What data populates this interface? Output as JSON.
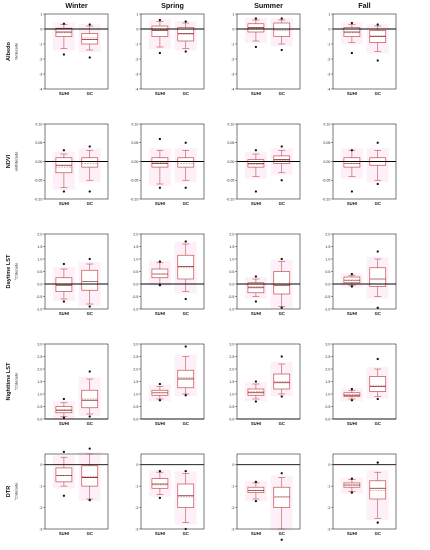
{
  "colors": {
    "box": "#c0504d",
    "median": "#8b1a1a",
    "mean": "#c98a8a",
    "frame": "#222222",
    "zero": "#000000",
    "halo": "#fbe3f4"
  },
  "seasons": [
    "Winter",
    "Spring",
    "Summer",
    "Fall"
  ],
  "chart_data": [
    {
      "type": "box",
      "variable": "Albedo",
      "unit": "%/decade",
      "ylim": [
        -4,
        1
      ],
      "yticks": [
        "1",
        "0",
        "-1",
        "-2",
        "-3",
        "-4"
      ],
      "ytick_values": [
        1,
        0,
        -1,
        -2,
        -3,
        -4
      ],
      "categories": [
        "SUHI",
        "GC"
      ],
      "panels": [
        {
          "season": "Winter",
          "boxes": [
            {
              "category": "SUHI",
              "whisker_low": -1.3,
              "q1": -0.5,
              "median": -0.2,
              "mean": -0.25,
              "q3": 0.05,
              "whisker_high": 0.3,
              "outliers": [
                0.35,
                -1.7
              ]
            },
            {
              "category": "GC",
              "whisker_low": -1.4,
              "q1": -1.0,
              "median": -0.7,
              "mean": -0.6,
              "q3": -0.3,
              "whisker_high": 0.2,
              "outliers": [
                0.3,
                -1.9
              ]
            }
          ]
        },
        {
          "season": "Spring",
          "boxes": [
            {
              "category": "SUHI",
              "whisker_low": -1.2,
              "q1": -0.5,
              "median": -0.1,
              "mean": -0.05,
              "q3": 0.2,
              "whisker_high": 0.5,
              "outliers": [
                0.6,
                -1.6
              ]
            },
            {
              "category": "GC",
              "whisker_low": -1.3,
              "q1": -0.8,
              "median": -0.3,
              "mean": -0.35,
              "q3": 0.1,
              "whisker_high": 0.4,
              "outliers": [
                0.5,
                -1.5
              ]
            }
          ]
        },
        {
          "season": "Summer",
          "boxes": [
            {
              "category": "SUHI",
              "whisker_low": -0.8,
              "q1": -0.2,
              "median": 0.1,
              "mean": 0.05,
              "q3": 0.35,
              "whisker_high": 0.6,
              "outliers": [
                0.7,
                -1.2
              ]
            },
            {
              "category": "GC",
              "whisker_low": -1.0,
              "q1": -0.5,
              "median": 0.0,
              "mean": -0.1,
              "q3": 0.4,
              "whisker_high": 0.6,
              "outliers": [
                0.7,
                -1.4
              ]
            }
          ]
        },
        {
          "season": "Fall",
          "boxes": [
            {
              "category": "SUHI",
              "whisker_low": -0.9,
              "q1": -0.5,
              "median": -0.2,
              "mean": -0.25,
              "q3": 0.1,
              "whisker_high": 0.3,
              "outliers": [
                0.4,
                -1.6
              ]
            },
            {
              "category": "GC",
              "whisker_low": -1.5,
              "q1": -0.9,
              "median": -0.5,
              "mean": -0.45,
              "q3": -0.1,
              "whisker_high": 0.2,
              "outliers": [
                0.3,
                -2.1
              ]
            }
          ]
        }
      ]
    },
    {
      "type": "box",
      "variable": "NDVI",
      "unit": "unit/decade",
      "ylim": [
        -0.1,
        0.1
      ],
      "yticks": [
        "0.10",
        "0.05",
        "0.00",
        "-0.05",
        "-0.10"
      ],
      "ytick_values": [
        0.1,
        0.05,
        0,
        -0.05,
        -0.1
      ],
      "categories": [
        "SUHI",
        "GC"
      ],
      "panels": [
        {
          "season": "Winter",
          "boxes": [
            {
              "category": "SUHI",
              "whisker_low": -0.07,
              "q1": -0.03,
              "median": -0.01,
              "mean": -0.015,
              "q3": 0.01,
              "whisker_high": 0.02,
              "outliers": [
                0.03,
                -0.08
              ]
            },
            {
              "category": "GC",
              "whisker_low": -0.05,
              "q1": -0.015,
              "median": 0.0,
              "mean": -0.005,
              "q3": 0.01,
              "whisker_high": 0.03,
              "outliers": [
                0.04,
                -0.08
              ]
            }
          ]
        },
        {
          "season": "Spring",
          "boxes": [
            {
              "category": "SUHI",
              "whisker_low": -0.06,
              "q1": -0.015,
              "median": -0.005,
              "mean": -0.003,
              "q3": 0.01,
              "whisker_high": 0.03,
              "outliers": [
                0.06,
                -0.07
              ]
            },
            {
              "category": "GC",
              "whisker_low": -0.05,
              "q1": -0.015,
              "median": 0.0,
              "mean": -0.005,
              "q3": 0.01,
              "whisker_high": 0.03,
              "outliers": [
                0.05,
                -0.07
              ]
            }
          ]
        },
        {
          "season": "Summer",
          "boxes": [
            {
              "category": "SUHI",
              "whisker_low": -0.04,
              "q1": -0.015,
              "median": -0.005,
              "mean": -0.008,
              "q3": 0.005,
              "whisker_high": 0.02,
              "outliers": [
                0.03,
                -0.08
              ]
            },
            {
              "category": "GC",
              "whisker_low": -0.03,
              "q1": -0.005,
              "median": 0.005,
              "mean": 0.003,
              "q3": 0.015,
              "whisker_high": 0.03,
              "outliers": [
                0.04,
                -0.05
              ]
            }
          ]
        },
        {
          "season": "Fall",
          "boxes": [
            {
              "category": "SUHI",
              "whisker_low": -0.04,
              "q1": -0.015,
              "median": -0.005,
              "mean": -0.005,
              "q3": 0.01,
              "whisker_high": 0.03,
              "outliers": [
                0.03,
                -0.08
              ]
            },
            {
              "category": "GC",
              "whisker_low": -0.05,
              "q1": -0.01,
              "median": 0.0,
              "mean": 0.0,
              "q3": 0.01,
              "whisker_high": 0.03,
              "outliers": [
                0.05,
                -0.06
              ]
            }
          ]
        }
      ]
    },
    {
      "type": "box",
      "variable": "Daytime LST",
      "unit": "°C/decade",
      "ylim": [
        -1,
        2
      ],
      "yticks": [
        "2.0",
        "1.5",
        "1.0",
        "0.5",
        "0.0",
        "-0.5",
        "-1.0"
      ],
      "ytick_values": [
        2,
        1.5,
        1,
        0.5,
        0,
        -0.5,
        -1
      ],
      "categories": [
        "SUHI",
        "GC"
      ],
      "panels": [
        {
          "season": "Winter",
          "boxes": [
            {
              "category": "SUHI",
              "whisker_low": -0.6,
              "q1": -0.3,
              "median": -0.05,
              "mean": -0.02,
              "q3": 0.25,
              "whisker_high": 0.6,
              "outliers": [
                0.8,
                -0.7
              ]
            },
            {
              "category": "GC",
              "whisker_low": -0.8,
              "q1": -0.25,
              "median": 0.1,
              "mean": 0.1,
              "q3": 0.55,
              "whisker_high": 0.8,
              "outliers": [
                1.0,
                -0.9
              ]
            }
          ]
        },
        {
          "season": "Spring",
          "boxes": [
            {
              "category": "SUHI",
              "whisker_low": 0.0,
              "q1": 0.25,
              "median": 0.4,
              "mean": 0.4,
              "q3": 0.6,
              "whisker_high": 0.85,
              "outliers": [
                0.9,
                -0.05
              ]
            },
            {
              "category": "GC",
              "whisker_low": -0.3,
              "q1": 0.2,
              "median": 0.7,
              "mean": 0.65,
              "q3": 1.15,
              "whisker_high": 1.6,
              "outliers": [
                1.7,
                -0.6
              ]
            }
          ]
        },
        {
          "season": "Summer",
          "boxes": [
            {
              "category": "SUHI",
              "whisker_low": -0.5,
              "q1": -0.35,
              "median": -0.15,
              "mean": -0.1,
              "q3": 0.05,
              "whisker_high": 0.2,
              "outliers": [
                0.3,
                -0.7
              ]
            },
            {
              "category": "GC",
              "whisker_low": -0.9,
              "q1": -0.4,
              "median": -0.05,
              "mean": 0.0,
              "q3": 0.5,
              "whisker_high": 0.9,
              "outliers": [
                1.0,
                -0.95
              ]
            }
          ]
        },
        {
          "season": "Fall",
          "boxes": [
            {
              "category": "SUHI",
              "whisker_low": -0.05,
              "q1": 0.05,
              "median": 0.15,
              "mean": 0.15,
              "q3": 0.28,
              "whisker_high": 0.35,
              "outliers": [
                0.4,
                -0.1
              ]
            },
            {
              "category": "GC",
              "whisker_low": -0.5,
              "q1": -0.1,
              "median": 0.2,
              "mean": 0.2,
              "q3": 0.65,
              "whisker_high": 1.0,
              "outliers": [
                1.3,
                -0.95
              ]
            }
          ]
        }
      ]
    },
    {
      "type": "box",
      "variable": "Nighttime LST",
      "unit": "°C/decade",
      "ylim": [
        0,
        3
      ],
      "yticks": [
        "3.0",
        "2.5",
        "2.0",
        "1.5",
        "1.0",
        "0.5",
        "0.0"
      ],
      "ytick_values": [
        3,
        2.5,
        2,
        1.5,
        1,
        0.5,
        0
      ],
      "categories": [
        "SUHI",
        "GC"
      ],
      "panels": [
        {
          "season": "Winter",
          "boxes": [
            {
              "category": "SUHI",
              "whisker_low": 0.1,
              "q1": 0.25,
              "median": 0.35,
              "mean": 0.38,
              "q3": 0.5,
              "whisker_high": 0.65,
              "outliers": [
                0.8,
                0.05
              ]
            },
            {
              "category": "GC",
              "whisker_low": 0.2,
              "q1": 0.45,
              "median": 0.75,
              "mean": 0.8,
              "q3": 1.15,
              "whisker_high": 1.6,
              "outliers": [
                1.9,
                0.1
              ]
            }
          ]
        },
        {
          "season": "Spring",
          "boxes": [
            {
              "category": "SUHI",
              "whisker_low": 0.8,
              "q1": 0.95,
              "median": 1.05,
              "mean": 1.05,
              "q3": 1.15,
              "whisker_high": 1.3,
              "outliers": [
                1.4,
                0.75
              ]
            },
            {
              "category": "GC",
              "whisker_low": 1.0,
              "q1": 1.25,
              "median": 1.6,
              "mean": 1.65,
              "q3": 1.95,
              "whisker_high": 2.5,
              "outliers": [
                2.9,
                0.95
              ]
            }
          ]
        },
        {
          "season": "Summer",
          "boxes": [
            {
              "category": "SUHI",
              "whisker_low": 0.8,
              "q1": 0.95,
              "median": 1.05,
              "mean": 1.1,
              "q3": 1.2,
              "whisker_high": 1.4,
              "outliers": [
                1.5,
                0.7
              ]
            },
            {
              "category": "GC",
              "whisker_low": 1.0,
              "q1": 1.2,
              "median": 1.45,
              "mean": 1.5,
              "q3": 1.8,
              "whisker_high": 2.2,
              "outliers": [
                2.5,
                0.9
              ]
            }
          ]
        },
        {
          "season": "Fall",
          "boxes": [
            {
              "category": "SUHI",
              "whisker_low": 0.8,
              "q1": 0.9,
              "median": 0.95,
              "mean": 0.98,
              "q3": 1.05,
              "whisker_high": 1.15,
              "outliers": [
                1.2,
                0.75
              ]
            },
            {
              "category": "GC",
              "whisker_low": 0.9,
              "q1": 1.1,
              "median": 1.3,
              "mean": 1.35,
              "q3": 1.7,
              "whisker_high": 2.0,
              "outliers": [
                2.4,
                0.8
              ]
            }
          ]
        }
      ]
    },
    {
      "type": "box",
      "variable": "DTR",
      "unit": "°C/decade",
      "ylim": [
        -3,
        0.5
      ],
      "yticks": [
        "0",
        "-1",
        "-2",
        "-3"
      ],
      "ytick_values": [
        0,
        -1,
        -2,
        -3
      ],
      "categories": [
        "SUHI",
        "GC"
      ],
      "panels": [
        {
          "season": "Winter",
          "boxes": [
            {
              "category": "SUHI",
              "whisker_low": -1.0,
              "q1": -0.8,
              "median": -0.5,
              "mean": -0.5,
              "q3": -0.15,
              "whisker_high": 0.35,
              "outliers": [
                0.6,
                -1.45
              ]
            },
            {
              "category": "GC",
              "whisker_low": -1.6,
              "q1": -1.0,
              "median": -0.6,
              "mean": -0.55,
              "q3": -0.05,
              "whisker_high": 0.5,
              "outliers": [
                0.75,
                -1.65
              ]
            }
          ]
        },
        {
          "season": "Spring",
          "boxes": [
            {
              "category": "SUHI",
              "whisker_low": -1.4,
              "q1": -1.1,
              "median": -0.9,
              "mean": -0.95,
              "q3": -0.65,
              "whisker_high": -0.35,
              "outliers": [
                -0.3,
                -1.55
              ]
            },
            {
              "category": "GC",
              "whisker_low": -2.7,
              "q1": -2.0,
              "median": -1.45,
              "mean": -1.5,
              "q3": -0.9,
              "whisker_high": -0.4,
              "outliers": [
                -0.3,
                -3.0
              ]
            }
          ]
        },
        {
          "season": "Summer",
          "boxes": [
            {
              "category": "SUHI",
              "whisker_low": -1.6,
              "q1": -1.3,
              "median": -1.2,
              "mean": -1.2,
              "q3": -1.05,
              "whisker_high": -0.85,
              "outliers": [
                -0.8,
                -1.7
              ]
            },
            {
              "category": "GC",
              "whisker_low": -3.0,
              "q1": -2.0,
              "median": -1.5,
              "mean": -1.5,
              "q3": -1.05,
              "whisker_high": -0.6,
              "outliers": [
                -0.4,
                -3.5
              ]
            }
          ]
        },
        {
          "season": "Fall",
          "boxes": [
            {
              "category": "SUHI",
              "whisker_low": -1.25,
              "q1": -1.05,
              "median": -0.95,
              "mean": -0.95,
              "q3": -0.85,
              "whisker_high": -0.7,
              "outliers": [
                -0.65,
                -1.3
              ]
            },
            {
              "category": "GC",
              "whisker_low": -2.5,
              "q1": -1.6,
              "median": -1.1,
              "mean": -1.2,
              "q3": -0.75,
              "whisker_high": -0.35,
              "outliers": [
                0.1,
                -2.7
              ]
            }
          ]
        }
      ]
    }
  ]
}
